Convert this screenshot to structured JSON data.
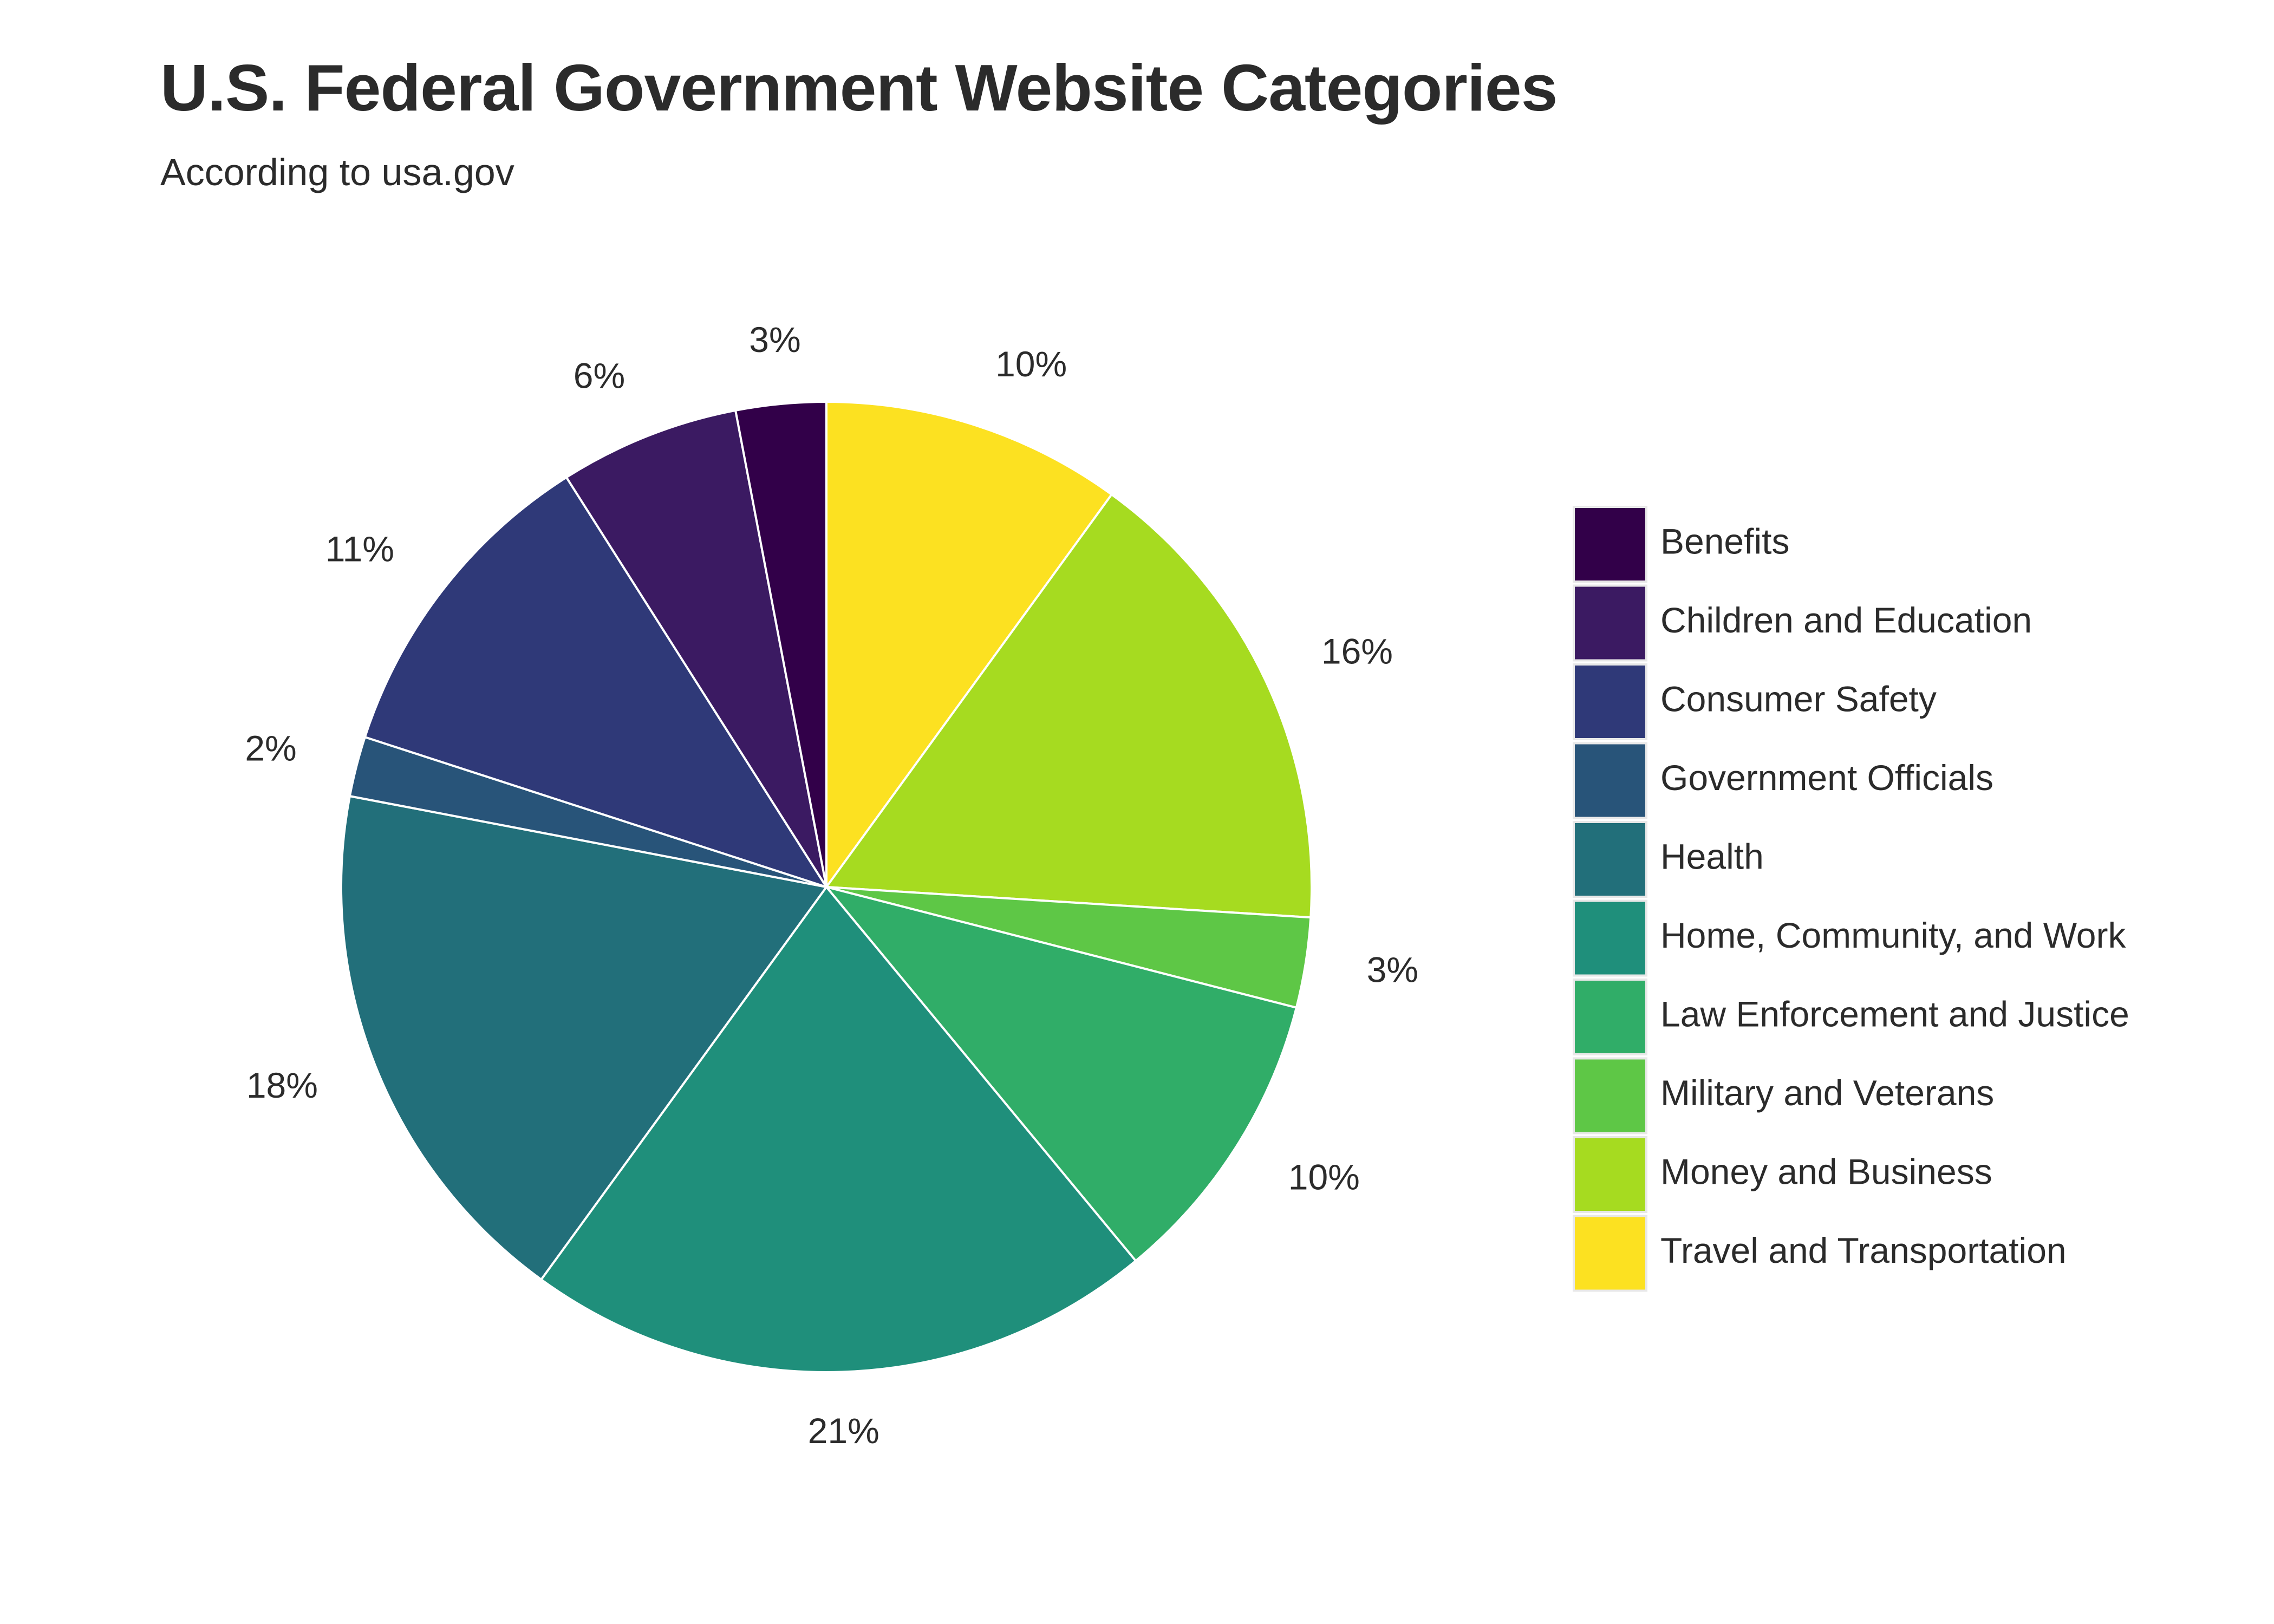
{
  "chart_data": {
    "type": "pie",
    "title": "U.S. Federal Government Website Categories",
    "subtitle": "According to usa.gov",
    "direction": "clockwise from top",
    "legend_placement": "right",
    "slices": [
      {
        "label": "Benefits",
        "value": 3,
        "display": "3%",
        "color": "#320049"
      },
      {
        "label": "Children and Education",
        "value": 6,
        "display": "6%",
        "color": "#3b1a62"
      },
      {
        "label": "Consumer Safety",
        "value": 11,
        "display": "11%",
        "color": "#2f3978"
      },
      {
        "label": "Government Officials",
        "value": 2,
        "display": "2%",
        "color": "#285479"
      },
      {
        "label": "Health",
        "value": 18,
        "display": "18%",
        "color": "#226f7a"
      },
      {
        "label": "Home, Community, and Work",
        "value": 21,
        "display": "21%",
        "color": "#1f8f7b"
      },
      {
        "label": "Law Enforcement and Justice",
        "value": 10,
        "display": "10%",
        "color": "#30ad68"
      },
      {
        "label": "Military and Veterans",
        "value": 3,
        "display": "3%",
        "color": "#5ec746"
      },
      {
        "label": "Money and Business",
        "value": 16,
        "display": "16%",
        "color": "#a6db20"
      },
      {
        "label": "Travel and Transportation",
        "value": 10,
        "display": "10%",
        "color": "#fce121"
      }
    ]
  }
}
